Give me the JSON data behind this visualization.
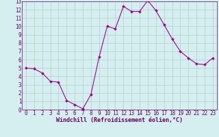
{
  "x": [
    0,
    1,
    2,
    3,
    4,
    5,
    6,
    7,
    8,
    9,
    10,
    11,
    12,
    13,
    14,
    15,
    16,
    17,
    18,
    19,
    20,
    21,
    22,
    23
  ],
  "y": [
    5.0,
    4.9,
    4.4,
    3.4,
    3.3,
    1.1,
    0.6,
    0.1,
    1.8,
    6.3,
    10.0,
    9.7,
    12.4,
    11.8,
    11.8,
    13.1,
    11.9,
    10.2,
    8.5,
    7.0,
    6.2,
    5.5,
    5.4,
    6.2
  ],
  "line_color": "#990099",
  "marker": "D",
  "marker_size": 2.0,
  "bg_color": "#d5eef0",
  "grid_color": "#b0cdd0",
  "xlabel": "Windchill (Refroidissement éolien,°C)",
  "xlim": [
    -0.5,
    23.5
  ],
  "ylim": [
    0,
    13
  ],
  "xticks": [
    0,
    1,
    2,
    3,
    4,
    5,
    6,
    7,
    8,
    9,
    10,
    11,
    12,
    13,
    14,
    15,
    16,
    17,
    18,
    19,
    20,
    21,
    22,
    23
  ],
  "yticks": [
    0,
    1,
    2,
    3,
    4,
    5,
    6,
    7,
    8,
    9,
    10,
    11,
    12,
    13
  ],
  "tick_color": "#660066",
  "font_size_xlabel": 6.0,
  "font_size_ticks": 5.5
}
